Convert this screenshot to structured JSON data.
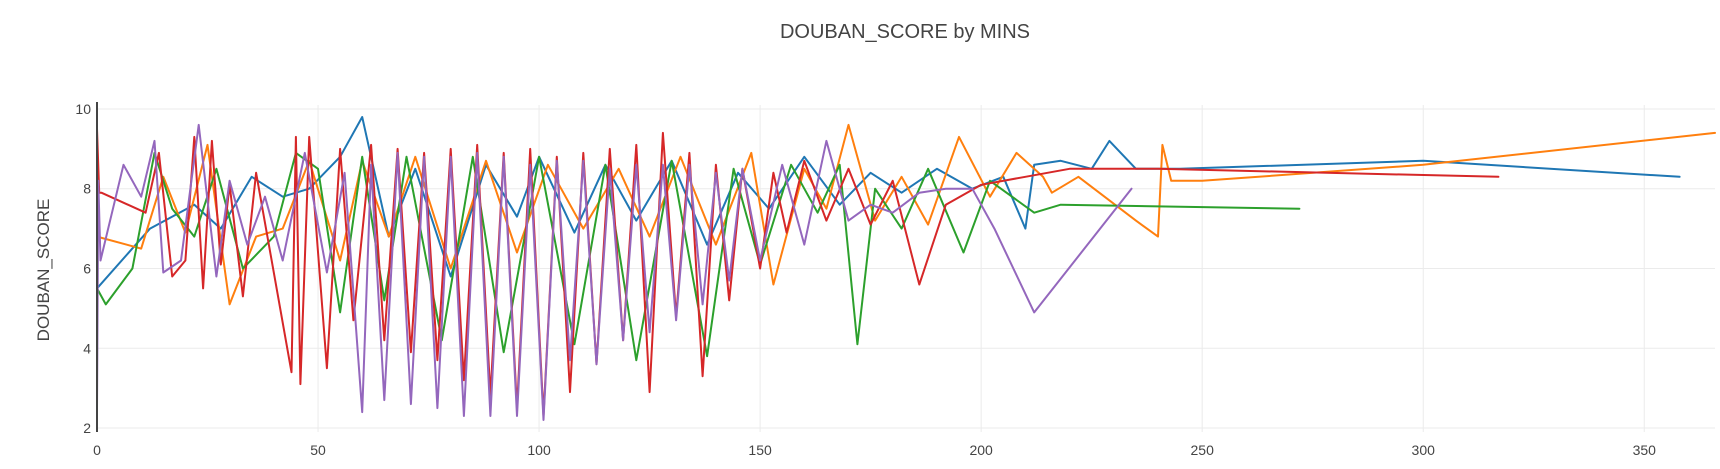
{
  "chart_data": {
    "type": "line",
    "title": "DOUBAN_SCORE by MINS",
    "xlabel": "",
    "ylabel": "DOUBAN_SCORE",
    "xlim": [
      0,
      366
    ],
    "ylim": [
      1.9,
      10.1
    ],
    "xticks": [
      0,
      50,
      100,
      150,
      200,
      250,
      300,
      350
    ],
    "yticks": [
      2,
      4,
      6,
      8,
      10
    ],
    "grid": true,
    "legend": "none",
    "colors": [
      "#1f77b4",
      "#ff7f0e",
      "#2ca02c",
      "#d62728",
      "#9467bd"
    ],
    "series": [
      {
        "color": "#1f77b4",
        "x": [
          0,
          12,
          22,
          28,
          35,
          42,
          48,
          55,
          60,
          66,
          72,
          80,
          88,
          95,
          100,
          108,
          115,
          122,
          130,
          138,
          145,
          152,
          160,
          168,
          175,
          182,
          190,
          198,
          205,
          210,
          212,
          218,
          225,
          229,
          235,
          245,
          300,
          358
        ],
        "y": [
          5.5,
          7.0,
          7.6,
          7.0,
          8.3,
          7.8,
          8.0,
          8.8,
          9.8,
          6.8,
          8.5,
          5.8,
          8.6,
          7.3,
          8.8,
          6.9,
          8.6,
          7.2,
          8.7,
          6.6,
          8.4,
          7.5,
          8.8,
          7.6,
          8.4,
          7.9,
          8.5,
          8.0,
          8.3,
          7.0,
          8.6,
          8.7,
          8.5,
          9.2,
          8.5,
          8.5,
          8.7,
          8.3
        ]
      },
      {
        "color": "#ff7f0e",
        "x": [
          0,
          10,
          15,
          20,
          25,
          30,
          36,
          42,
          48,
          55,
          60,
          66,
          72,
          80,
          88,
          95,
          102,
          110,
          118,
          125,
          132,
          140,
          148,
          153,
          160,
          165,
          170,
          176,
          182,
          188,
          195,
          202,
          208,
          214,
          216,
          222,
          235,
          240,
          241,
          243,
          250,
          300,
          366
        ],
        "y": [
          6.8,
          6.5,
          8.3,
          6.9,
          9.1,
          5.1,
          6.8,
          7.0,
          8.7,
          6.2,
          8.7,
          6.8,
          8.8,
          6.0,
          8.7,
          6.4,
          8.6,
          7.0,
          8.5,
          6.8,
          8.8,
          6.6,
          8.9,
          5.6,
          8.5,
          7.5,
          9.6,
          7.2,
          8.3,
          7.1,
          9.3,
          7.8,
          8.9,
          8.3,
          7.9,
          8.3,
          7.2,
          6.8,
          9.1,
          8.2,
          8.2,
          8.6,
          9.4
        ]
      },
      {
        "color": "#2ca02c",
        "x": [
          0,
          2,
          8,
          13,
          17,
          22,
          27,
          33,
          40,
          45,
          50,
          55,
          60,
          65,
          70,
          78,
          85,
          92,
          100,
          108,
          115,
          122,
          130,
          138,
          144,
          150,
          157,
          163,
          168,
          172,
          176,
          182,
          188,
          196,
          202,
          212,
          218,
          272
        ],
        "y": [
          5.5,
          5.1,
          6.0,
          8.9,
          7.5,
          6.8,
          8.5,
          6.0,
          6.8,
          8.9,
          8.5,
          4.9,
          8.8,
          5.2,
          8.8,
          4.2,
          8.8,
          3.9,
          8.8,
          4.1,
          8.6,
          3.7,
          8.7,
          3.8,
          8.5,
          6.1,
          8.6,
          7.4,
          8.6,
          4.1,
          8.0,
          7.0,
          8.5,
          6.4,
          8.2,
          7.4,
          7.6,
          7.5
        ]
      },
      {
        "color": "#d62728",
        "x": [
          0,
          0.5,
          1,
          11,
          14,
          17,
          20,
          22,
          24,
          26,
          28,
          30,
          33,
          36,
          44,
          45,
          46,
          48,
          52,
          55,
          58,
          62,
          65,
          68,
          71,
          74,
          77,
          80,
          83,
          86,
          89,
          92,
          95,
          98,
          101,
          104,
          107,
          110,
          113,
          116,
          119,
          122,
          125,
          128,
          131,
          134,
          137,
          140,
          143,
          146,
          150,
          153,
          156,
          160,
          165,
          170,
          175,
          180,
          186,
          192,
          200,
          210,
          220,
          240,
          317
        ],
        "y": [
          9.5,
          7.9,
          7.9,
          7.4,
          8.9,
          5.8,
          6.2,
          9.3,
          5.5,
          9.2,
          6.1,
          8.1,
          5.3,
          8.4,
          3.4,
          9.3,
          3.1,
          9.3,
          3.5,
          9.0,
          4.7,
          9.1,
          4.2,
          9.0,
          3.9,
          8.9,
          3.7,
          9.0,
          3.2,
          9.1,
          2.8,
          8.9,
          2.5,
          9.0,
          2.3,
          8.8,
          2.9,
          8.9,
          3.6,
          9.0,
          4.2,
          9.1,
          2.9,
          9.4,
          4.8,
          8.9,
          3.3,
          8.6,
          5.2,
          8.5,
          6.0,
          8.4,
          6.9,
          8.7,
          7.2,
          8.5,
          7.1,
          8.2,
          5.6,
          7.6,
          8.1,
          8.3,
          8.5,
          8.5,
          8.3
        ]
      },
      {
        "color": "#9467bd",
        "x": [
          0,
          0.3,
          0.8,
          6,
          10,
          13,
          15,
          19,
          23,
          27,
          30,
          34,
          38,
          42,
          47,
          52,
          56,
          60,
          62,
          65,
          68,
          71,
          74,
          77,
          80,
          83,
          86,
          89,
          92,
          95,
          98,
          101,
          104,
          107,
          110,
          113,
          116,
          119,
          122,
          125,
          128,
          131,
          134,
          137,
          140,
          143,
          146,
          150,
          155,
          160,
          165,
          170,
          175,
          180,
          186,
          192,
          198,
          203,
          212,
          234
        ],
        "y": [
          2.5,
          8.2,
          6.2,
          8.6,
          7.8,
          9.2,
          5.9,
          6.2,
          9.6,
          5.8,
          8.2,
          6.6,
          7.8,
          6.2,
          8.9,
          5.9,
          8.4,
          2.4,
          8.6,
          2.7,
          8.9,
          2.6,
          8.8,
          2.5,
          8.8,
          2.3,
          8.9,
          2.3,
          8.8,
          2.3,
          8.6,
          2.2,
          8.7,
          3.7,
          8.7,
          3.6,
          8.5,
          4.2,
          8.6,
          4.4,
          8.6,
          4.7,
          8.6,
          5.1,
          8.4,
          5.7,
          8.5,
          6.2,
          8.6,
          6.6,
          9.2,
          7.2,
          7.6,
          7.4,
          7.9,
          8.0,
          8.0,
          7.0,
          4.9,
          8.0
        ]
      }
    ]
  }
}
